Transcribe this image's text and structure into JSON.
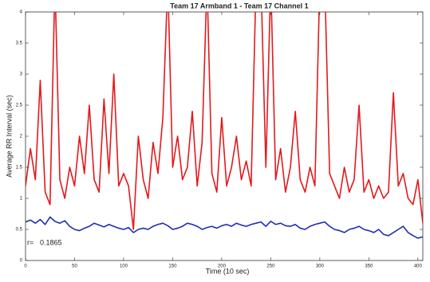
{
  "chart_data": {
    "type": "line",
    "title": "Team 17 Armband 1 - Team 17 Channel 1",
    "xlabel": "Time (10 sec)",
    "ylabel": "Average RR Interval (sec)",
    "annotations": [
      "r=",
      "0.1865"
    ],
    "x": [
      0,
      5,
      10,
      15,
      20,
      25,
      30,
      35,
      40,
      45,
      50,
      55,
      60,
      65,
      70,
      75,
      80,
      85,
      90,
      95,
      100,
      105,
      110,
      115,
      120,
      125,
      130,
      135,
      140,
      145,
      150,
      155,
      160,
      165,
      170,
      175,
      180,
      185,
      190,
      195,
      200,
      205,
      210,
      215,
      220,
      225,
      230,
      235,
      240,
      245,
      250,
      255,
      260,
      265,
      270,
      275,
      280,
      285,
      290,
      295,
      300,
      305,
      310,
      315,
      320,
      325,
      330,
      335,
      340,
      345,
      350,
      355,
      360,
      365,
      370,
      375,
      380,
      385,
      390,
      395,
      400,
      405
    ],
    "series": [
      {
        "color": "#e3191c",
        "values": [
          1.2,
          1.8,
          1.3,
          2.9,
          1.1,
          0.9,
          4.5,
          1.3,
          1.0,
          1.5,
          1.2,
          2.0,
          1.4,
          2.5,
          1.3,
          1.1,
          2.6,
          1.4,
          3.0,
          1.2,
          1.4,
          1.2,
          0.5,
          2.0,
          1.3,
          1.0,
          1.9,
          1.4,
          2.3,
          4.5,
          1.5,
          2.0,
          1.3,
          1.5,
          2.4,
          1.2,
          1.9,
          4.5,
          1.4,
          1.1,
          2.3,
          1.2,
          1.5,
          2.0,
          1.3,
          1.6,
          1.2,
          4.5,
          4.5,
          1.5,
          4.5,
          1.3,
          1.8,
          1.1,
          1.5,
          2.4,
          1.3,
          1.1,
          1.5,
          1.2,
          4.5,
          4.5,
          1.4,
          1.2,
          1.0,
          1.5,
          1.1,
          1.3,
          2.5,
          1.1,
          1.3,
          1.0,
          1.2,
          1.0,
          1.1,
          2.7,
          1.2,
          1.4,
          1.0,
          0.9,
          1.3,
          0.6
        ]
      },
      {
        "color": "#1f2fb0",
        "values": [
          0.62,
          0.65,
          0.6,
          0.66,
          0.58,
          0.7,
          0.63,
          0.6,
          0.64,
          0.55,
          0.5,
          0.48,
          0.52,
          0.55,
          0.6,
          0.57,
          0.54,
          0.58,
          0.55,
          0.52,
          0.5,
          0.53,
          0.45,
          0.5,
          0.52,
          0.5,
          0.55,
          0.58,
          0.6,
          0.56,
          0.5,
          0.52,
          0.55,
          0.6,
          0.58,
          0.55,
          0.5,
          0.53,
          0.55,
          0.52,
          0.56,
          0.58,
          0.55,
          0.6,
          0.57,
          0.55,
          0.58,
          0.6,
          0.62,
          0.55,
          0.63,
          0.58,
          0.6,
          0.56,
          0.55,
          0.58,
          0.52,
          0.5,
          0.55,
          0.58,
          0.6,
          0.62,
          0.55,
          0.5,
          0.48,
          0.45,
          0.5,
          0.52,
          0.55,
          0.5,
          0.48,
          0.45,
          0.5,
          0.42,
          0.4,
          0.45,
          0.5,
          0.55,
          0.45,
          0.4,
          0.36,
          0.38
        ]
      }
    ],
    "xlim": [
      0,
      405
    ],
    "ylim": [
      0,
      4
    ],
    "xticks": [
      0,
      50,
      100,
      150,
      200,
      250,
      300,
      350,
      400
    ],
    "yticks": [
      0,
      0.5,
      1,
      1.5,
      2,
      2.5,
      3,
      3.5,
      4
    ],
    "grid": false
  }
}
